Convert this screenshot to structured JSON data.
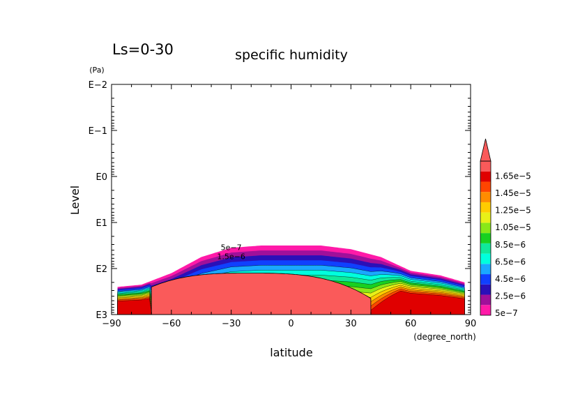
{
  "chart_data": {
    "type": "contour",
    "title": "specific humidity",
    "period_label": "Ls=0-30",
    "xlabel": "latitude",
    "xunit": "(degree_north)",
    "ylabel": "Level",
    "yunit": "(Pa)",
    "xlim": [
      -90,
      90
    ],
    "xticks": [
      -90,
      -60,
      -30,
      0,
      30,
      60,
      90
    ],
    "xtick_labels": [
      "−90",
      "−60",
      "−30",
      "0",
      "30",
      "60",
      "90"
    ],
    "yscale": "log",
    "ylim_log10": [
      -2,
      3
    ],
    "yticks_log10": [
      -2,
      -1,
      0,
      1,
      2,
      3
    ],
    "ytick_labels": [
      "E−2",
      "E−1",
      "E0",
      "E1",
      "E2",
      "E3"
    ],
    "colorbar": {
      "levels": [
        5e-07,
        2.5e-06,
        4.5e-06,
        6.5e-06,
        8.5e-06,
        1.05e-05,
        1.25e-05,
        1.45e-05,
        1.65e-05
      ],
      "labels": [
        "5e−7",
        "2.5e−6",
        "4.5e−6",
        "6.5e−6",
        "8.5e−6",
        "1.05e−5",
        "1.25e−5",
        "1.45e−5",
        "1.65e−5"
      ],
      "colors": [
        "#ff1aa8",
        "#a0109a",
        "#2a10b8",
        "#1040ff",
        "#1aa8ff",
        "#00ffdd",
        "#10e89a",
        "#18d020",
        "#88e818",
        "#e8f018",
        "#ffcc00",
        "#ff8c00",
        "#ff4500",
        "#e00000",
        "#fa5a5a"
      ],
      "overflow_color": "#fa5a5a"
    },
    "contour_labels": [
      "5e−7",
      "1.5e−6"
    ],
    "approx_extent": {
      "upper_boundary_log10": [
        [
          -87,
          2.4
        ],
        [
          -75,
          2.35
        ],
        [
          -60,
          2.1
        ],
        [
          -45,
          1.75
        ],
        [
          -30,
          1.55
        ],
        [
          -15,
          1.5
        ],
        [
          0,
          1.5
        ],
        [
          15,
          1.5
        ],
        [
          30,
          1.58
        ],
        [
          45,
          1.75
        ],
        [
          60,
          2.05
        ],
        [
          75,
          2.15
        ],
        [
          87,
          2.3
        ]
      ],
      "saturated_core_lat_range": [
        -70,
        40
      ],
      "saturated_core_top_log10": 2.1
    }
  }
}
